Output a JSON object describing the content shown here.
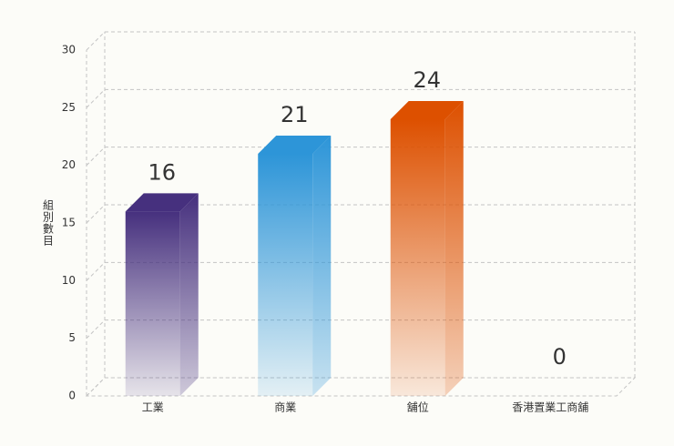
{
  "chart_data": {
    "type": "bar3d",
    "y_label": "組別數目",
    "categories": [
      "工業",
      "商業",
      "舖位",
      "香港置業工商舖"
    ],
    "values": [
      16,
      21,
      24,
      0
    ],
    "colors": [
      "#46307e",
      "#2d95d8",
      "#dd5000",
      "#888888"
    ],
    "ylim": [
      0,
      30
    ],
    "yticks": [
      0,
      5,
      10,
      15,
      20,
      25,
      30
    ],
    "grid": true
  }
}
